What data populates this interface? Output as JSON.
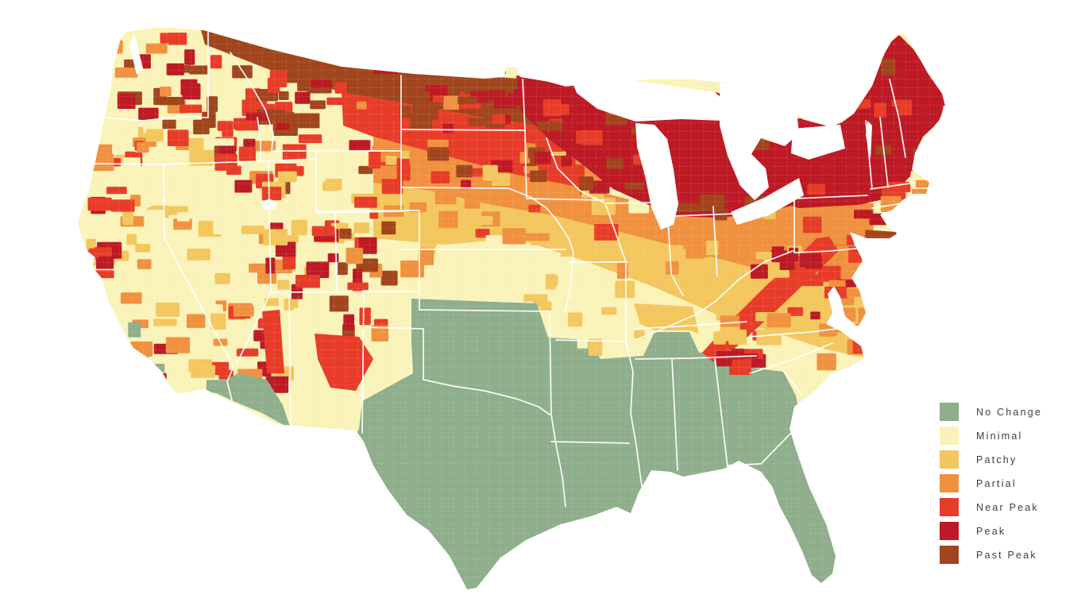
{
  "map": {
    "kind": "county-choropleth",
    "subject": "United States fall foliage status by county",
    "legend": {
      "items": [
        {
          "key": "no_change",
          "label": "No Change",
          "color": "#8FAE8B"
        },
        {
          "key": "minimal",
          "label": "Minimal",
          "color": "#FAF3B9"
        },
        {
          "key": "patchy",
          "label": "Patchy",
          "color": "#F3C75E"
        },
        {
          "key": "partial",
          "label": "Partial",
          "color": "#F0913F"
        },
        {
          "key": "near_peak",
          "label": "Near Peak",
          "color": "#E73C28"
        },
        {
          "key": "peak",
          "label": "Peak",
          "color": "#BD1A25"
        },
        {
          "key": "past_peak",
          "label": "Past Peak",
          "color": "#A0451C"
        }
      ]
    },
    "regions": [
      {
        "area": "Northern Plains border (MT, ND, northern MN)",
        "status": "Past Peak"
      },
      {
        "area": "Upper Midwest (MN, WI, MI)",
        "status": "Peak"
      },
      {
        "area": "New England and upstate NY",
        "status": "Peak"
      },
      {
        "area": "Pacific Northwest mountains (WA, ID panhandle)",
        "status": "Peak / Near Peak"
      },
      {
        "area": "Northern Rockies (MT, WY, UT, CO high country)",
        "status": "Near Peak / Peak"
      },
      {
        "area": "Mid-Atlantic and Ohio Valley (PA, NJ, MD, OH, IN)",
        "status": "Partial"
      },
      {
        "area": "Central Plains (NE, KS, IA, MO)",
        "status": "Minimal"
      },
      {
        "area": "Great Basin, California valleys, NM lowlands",
        "status": "Minimal / Patchy"
      },
      {
        "area": "Southern Appalachians (WV, VA, TN, NC)",
        "status": "Near Peak"
      },
      {
        "area": "Gulf South, TX, OK, FL and coastal Southeast",
        "status": "No Change"
      }
    ]
  }
}
